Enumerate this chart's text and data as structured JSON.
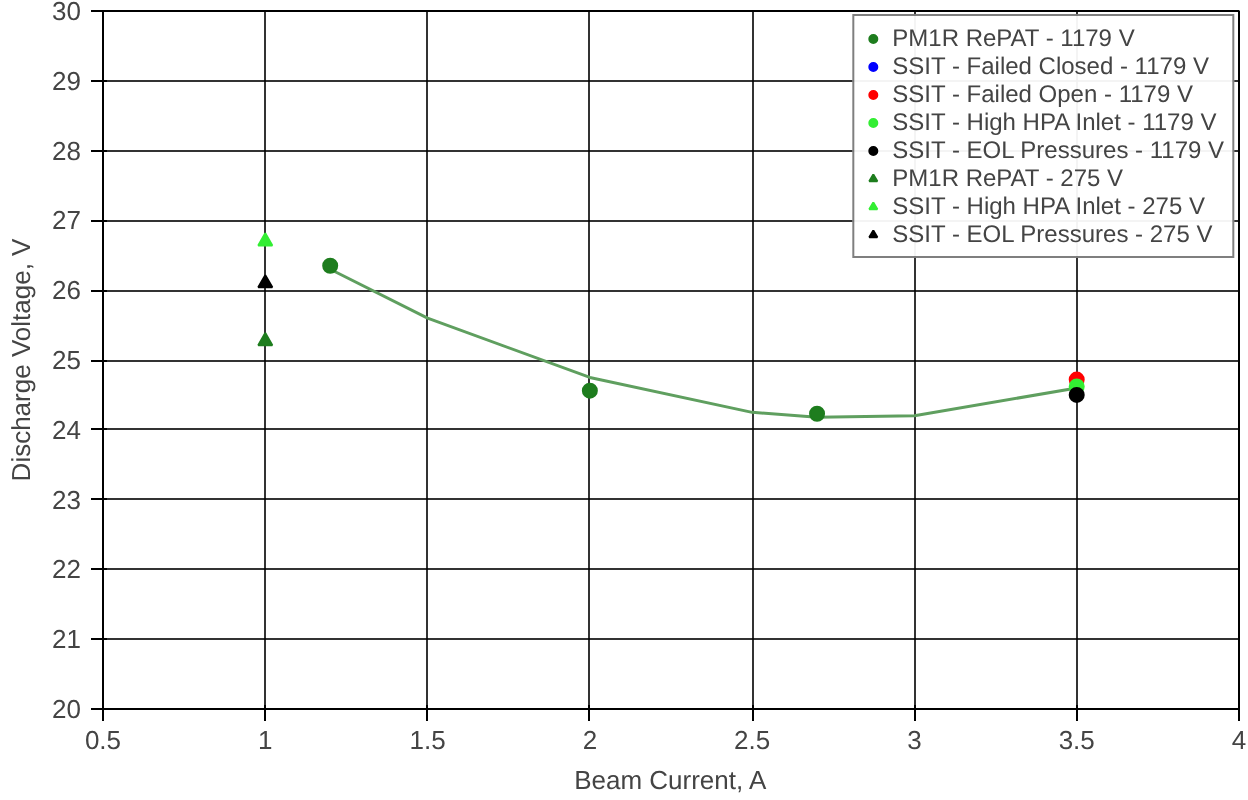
{
  "chart_data": {
    "type": "scatter",
    "xlabel": "Beam Current, A",
    "ylabel": "Discharge Voltage, V",
    "xlim": [
      0.5,
      4
    ],
    "xticks": [
      0.5,
      1,
      1.5,
      2,
      2.5,
      3,
      3.5,
      4
    ],
    "ylim": [
      20,
      30
    ],
    "yticks": [
      20,
      21,
      22,
      23,
      24,
      25,
      26,
      27,
      28,
      29,
      30
    ],
    "grid": true,
    "legend": "top right",
    "series": [
      {
        "type": "line",
        "color": "#5f9f5f",
        "marker": "none",
        "x": [
          1.2,
          1.5,
          2,
          2.5,
          2.7,
          3,
          3.5
        ],
        "values": [
          26.3,
          25.6,
          24.75,
          24.25,
          24.18,
          24.2,
          24.6
        ]
      },
      {
        "name": "PM1R RePAT - 1179 V",
        "color": "#1e7d1e",
        "marker": "circle",
        "x": [
          1.2,
          2,
          2.7
        ],
        "values": [
          26.35,
          24.56,
          24.23
        ]
      },
      {
        "name": "SSIT - Failed Closed - 1179 V",
        "color": "#0000ff",
        "marker": "circle"
      },
      {
        "name": "SSIT - Failed Open - 1179 V",
        "color": "#ff0000",
        "marker": "circle",
        "x": [
          3.5
        ],
        "values": [
          24.72
        ]
      },
      {
        "name": "SSIT - High HPA Inlet - 1179 V",
        "color": "#33ee33",
        "marker": "circle",
        "x": [
          3.5
        ],
        "values": [
          24.62
        ]
      },
      {
        "name": "SSIT - EOL Pressures - 1179 V",
        "color": "#000000",
        "marker": "circle",
        "x": [
          3.5
        ],
        "values": [
          24.5
        ]
      },
      {
        "name": "PM1R RePAT - 275 V",
        "color": "#1e7d1e",
        "marker": "triangle",
        "x": [
          1
        ],
        "values": [
          25.27
        ]
      },
      {
        "name": "SSIT - High HPA Inlet - 275 V",
        "color": "#33ee33",
        "marker": "triangle",
        "x": [
          1
        ],
        "values": [
          26.7
        ]
      },
      {
        "name": "SSIT - EOL Pressures - 275 V",
        "color": "#000000",
        "marker": "triangle",
        "x": [
          1
        ],
        "values": [
          26.1
        ]
      }
    ]
  }
}
